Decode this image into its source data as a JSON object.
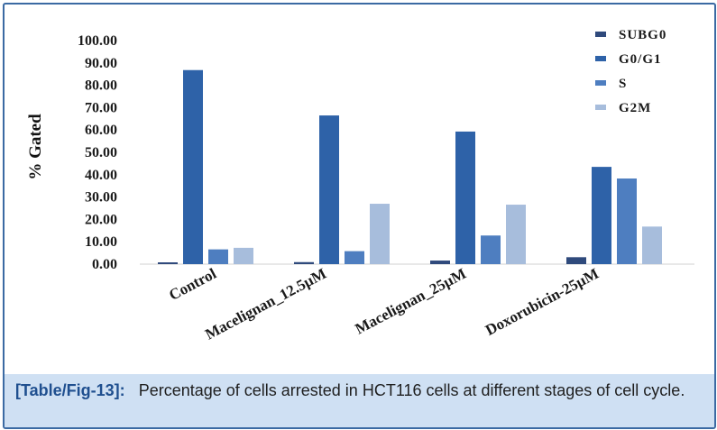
{
  "chart_data": {
    "type": "bar",
    "ylabel": "% Gated",
    "ylim": [
      0,
      100
    ],
    "yticks": [
      "0.00",
      "10.00",
      "20.00",
      "30.00",
      "40.00",
      "50.00",
      "60.00",
      "70.00",
      "80.00",
      "90.00",
      "100.00"
    ],
    "categories": [
      "Control",
      "Macelignan_12.5µM",
      "Macelignan_25µM",
      "Doxorubicin-25µM"
    ],
    "series": [
      {
        "name": "SUBG0",
        "color": "#2f4a7c",
        "values": [
          0.8,
          0.9,
          1.6,
          3.1
        ]
      },
      {
        "name": "G0/G1",
        "color": "#2e62a8",
        "values": [
          86.8,
          66.5,
          59.3,
          43.5
        ]
      },
      {
        "name": "S",
        "color": "#4e7ec0",
        "values": [
          6.6,
          5.8,
          12.8,
          38.3
        ]
      },
      {
        "name": "G2M",
        "color": "#a7bddc",
        "values": [
          7.3,
          27.0,
          26.6,
          16.8
        ]
      }
    ],
    "legend_position": "top-right",
    "grid": false
  },
  "caption": {
    "label": "[Table/Fig-13]:",
    "text": "Percentage of cells arrested in HCT116 cells at different stages of cell cycle."
  }
}
